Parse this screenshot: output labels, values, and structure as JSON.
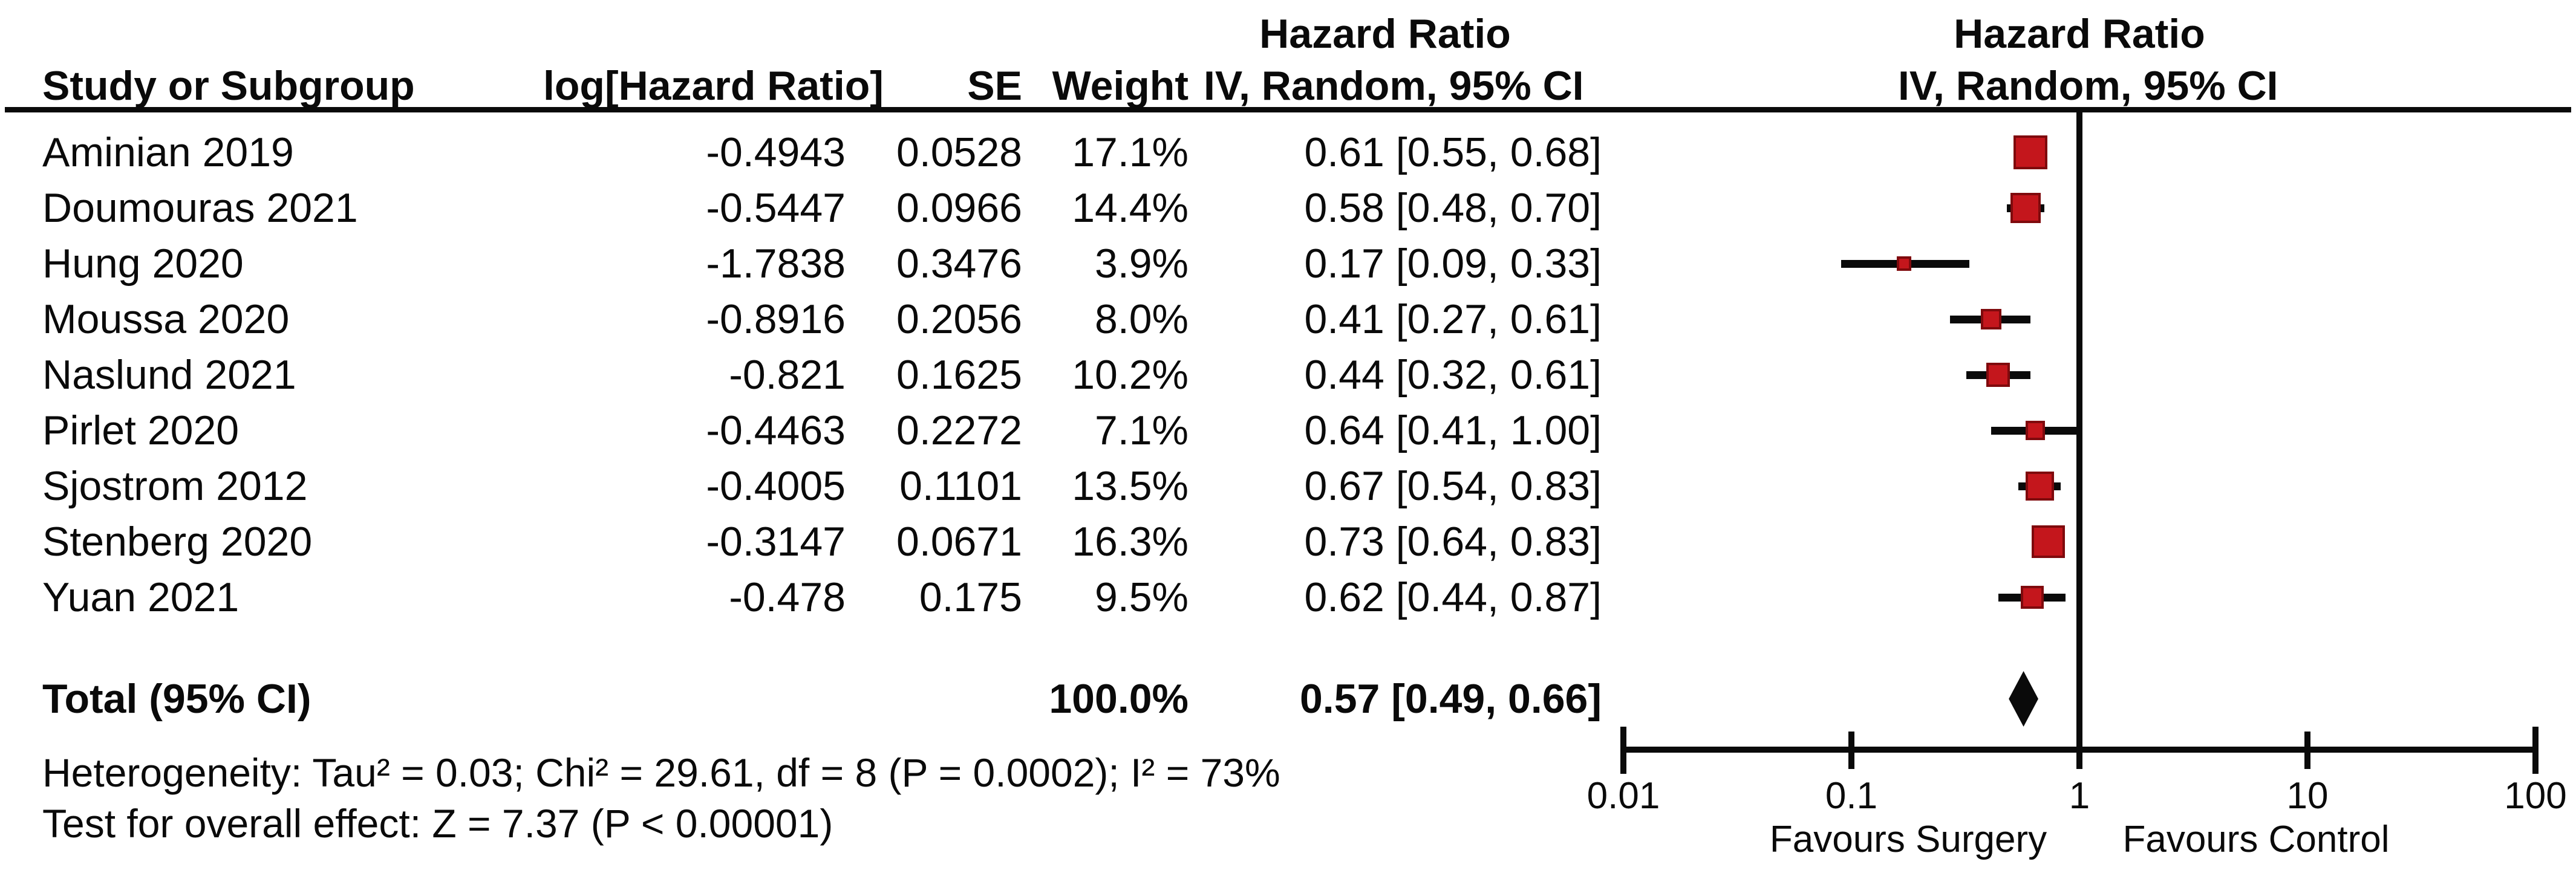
{
  "header": {
    "study": "Study or Subgroup",
    "log_hr": "log[Hazard Ratio]",
    "se": "SE",
    "weight": "Weight",
    "effect": "Hazard Ratio",
    "model": "IV, Random, 95% CI"
  },
  "axis": {
    "tick_labels": [
      "0.01",
      "0.1",
      "1",
      "10",
      "100"
    ],
    "favours_left": "Favours Surgery",
    "favours_right": "Favours Control"
  },
  "colors": {
    "marker_fill": "#c4161c",
    "marker_border": "#7f0a0d",
    "line": "#0a0a0a",
    "diamond": "#0a0a0a"
  },
  "chart_data": {
    "type": "forest",
    "effect_measure": "Hazard Ratio",
    "model": "IV, Random, 95% CI",
    "x_scale": "log",
    "xlim": [
      0.01,
      100
    ],
    "x_ticks": [
      0.01,
      0.1,
      1,
      10,
      100
    ],
    "studies": [
      {
        "study": "Aminian 2019",
        "log_hr": "-0.4943",
        "se": "0.0528",
        "weight": "17.1%",
        "weight_pct": 17.1,
        "hr": 0.61,
        "ci_low": 0.55,
        "ci_high": 0.68,
        "ci_text": "0.61 [0.55, 0.68]"
      },
      {
        "study": "Doumouras 2021",
        "log_hr": "-0.5447",
        "se": "0.0966",
        "weight": "14.4%",
        "weight_pct": 14.4,
        "hr": 0.58,
        "ci_low": 0.48,
        "ci_high": 0.7,
        "ci_text": "0.58 [0.48, 0.70]"
      },
      {
        "study": "Hung 2020",
        "log_hr": "-1.7838",
        "se": "0.3476",
        "weight": "3.9%",
        "weight_pct": 3.9,
        "hr": 0.17,
        "ci_low": 0.09,
        "ci_high": 0.33,
        "ci_text": "0.17 [0.09, 0.33]"
      },
      {
        "study": "Moussa 2020",
        "log_hr": "-0.8916",
        "se": "0.2056",
        "weight": "8.0%",
        "weight_pct": 8.0,
        "hr": 0.41,
        "ci_low": 0.27,
        "ci_high": 0.61,
        "ci_text": "0.41 [0.27, 0.61]"
      },
      {
        "study": "Naslund 2021",
        "log_hr": "-0.821",
        "se": "0.1625",
        "weight": "10.2%",
        "weight_pct": 10.2,
        "hr": 0.44,
        "ci_low": 0.32,
        "ci_high": 0.61,
        "ci_text": "0.44 [0.32, 0.61]"
      },
      {
        "study": "Pirlet 2020",
        "log_hr": "-0.4463",
        "se": "0.2272",
        "weight": "7.1%",
        "weight_pct": 7.1,
        "hr": 0.64,
        "ci_low": 0.41,
        "ci_high": 1.0,
        "ci_text": "0.64 [0.41, 1.00]"
      },
      {
        "study": "Sjostrom 2012",
        "log_hr": "-0.4005",
        "se": "0.1101",
        "weight": "13.5%",
        "weight_pct": 13.5,
        "hr": 0.67,
        "ci_low": 0.54,
        "ci_high": 0.83,
        "ci_text": "0.67 [0.54, 0.83]"
      },
      {
        "study": "Stenberg 2020",
        "log_hr": "-0.3147",
        "se": "0.0671",
        "weight": "16.3%",
        "weight_pct": 16.3,
        "hr": 0.73,
        "ci_low": 0.64,
        "ci_high": 0.83,
        "ci_text": "0.73 [0.64, 0.83]"
      },
      {
        "study": "Yuan 2021",
        "log_hr": "-0.478",
        "se": "0.175",
        "weight": "9.5%",
        "weight_pct": 9.5,
        "hr": 0.62,
        "ci_low": 0.44,
        "ci_high": 0.87,
        "ci_text": "0.62 [0.44, 0.87]"
      }
    ],
    "total": {
      "label": "Total (95% CI)",
      "weight": "100.0%",
      "weight_pct": 100.0,
      "hr": 0.57,
      "ci_low": 0.49,
      "ci_high": 0.66,
      "ci_text": "0.57 [0.49, 0.66]"
    },
    "heterogeneity": "Heterogeneity: Tau² = 0.03; Chi² = 29.61, df = 8 (P = 0.0002); I² = 73%",
    "overall_effect": "Test for overall effect: Z = 7.37 (P < 0.00001)",
    "axis_labels": {
      "left": "Favours Surgery",
      "right": "Favours Control"
    }
  }
}
